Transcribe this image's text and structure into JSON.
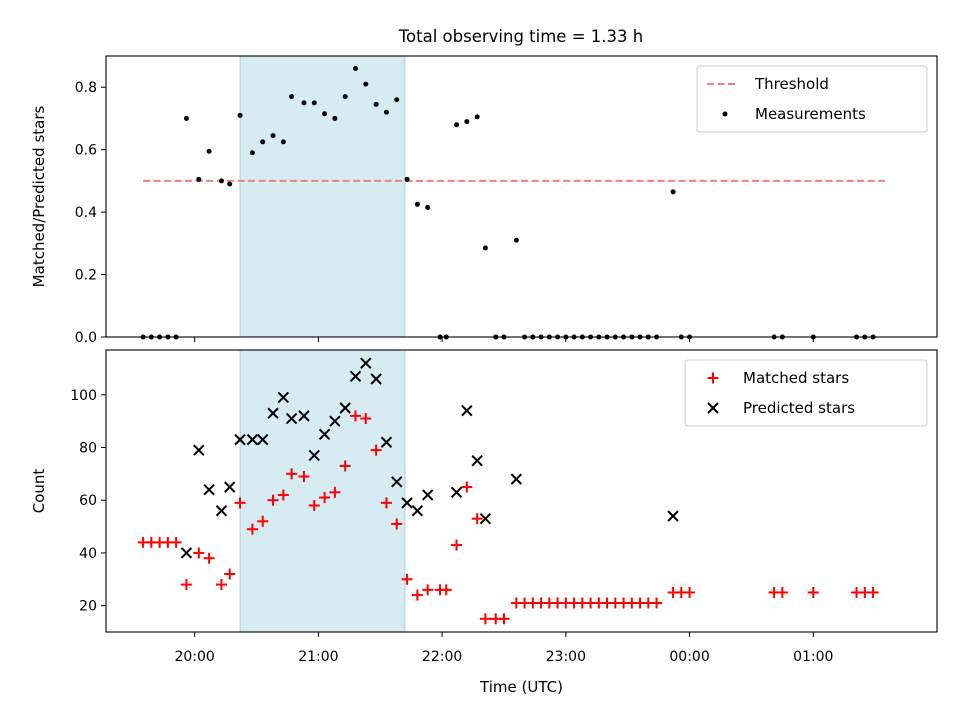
{
  "figure_title": "Total observing time = 1.33 h",
  "chart_data": [
    {
      "type": "scatter",
      "panel": "top",
      "ylabel": "Matched/Predicted stars",
      "xlabel": "",
      "xlim": [
        "19:17",
        "02:00"
      ],
      "ylim": [
        0,
        0.9
      ],
      "yticks": [
        0.0,
        0.2,
        0.4,
        0.6,
        0.8
      ],
      "ytick_labels": [
        "0.0",
        "0.2",
        "0.4",
        "0.6",
        "0.8"
      ],
      "grid": false,
      "legend_position": "upper right",
      "highlight_span": {
        "x": [
          "20:22",
          "21:42"
        ],
        "color": "#add8e6"
      },
      "series": [
        {
          "name": "Threshold",
          "kind": "dashed-line",
          "color": "#f08080",
          "points": [
            {
              "x": "19:35",
              "y": 0.5
            },
            {
              "x": "01:35",
              "y": 0.5
            }
          ]
        },
        {
          "name": "Measurements",
          "kind": "points",
          "color": "#000000",
          "points": [
            {
              "x": "19:35",
              "y": 0
            },
            {
              "x": "19:39",
              "y": 0
            },
            {
              "x": "19:43",
              "y": 0
            },
            {
              "x": "19:47",
              "y": 0
            },
            {
              "x": "19:51",
              "y": 0
            },
            {
              "x": "19:56",
              "y": 0.7
            },
            {
              "x": "20:02",
              "y": 0.505
            },
            {
              "x": "20:07",
              "y": 0.595
            },
            {
              "x": "20:13",
              "y": 0.5
            },
            {
              "x": "20:17",
              "y": 0.49
            },
            {
              "x": "20:22",
              "y": 0.71
            },
            {
              "x": "20:28",
              "y": 0.59
            },
            {
              "x": "20:33",
              "y": 0.625
            },
            {
              "x": "20:38",
              "y": 0.645
            },
            {
              "x": "20:43",
              "y": 0.625
            },
            {
              "x": "20:47",
              "y": 0.77
            },
            {
              "x": "20:53",
              "y": 0.75
            },
            {
              "x": "20:58",
              "y": 0.75
            },
            {
              "x": "21:03",
              "y": 0.715
            },
            {
              "x": "21:08",
              "y": 0.7
            },
            {
              "x": "21:13",
              "y": 0.77
            },
            {
              "x": "21:18",
              "y": 0.86
            },
            {
              "x": "21:23",
              "y": 0.81
            },
            {
              "x": "21:28",
              "y": 0.745
            },
            {
              "x": "21:33",
              "y": 0.72
            },
            {
              "x": "21:38",
              "y": 0.76
            },
            {
              "x": "21:43",
              "y": 0.505
            },
            {
              "x": "21:48",
              "y": 0.425
            },
            {
              "x": "21:53",
              "y": 0.415
            },
            {
              "x": "21:59",
              "y": 0
            },
            {
              "x": "22:02",
              "y": 0
            },
            {
              "x": "22:07",
              "y": 0.68
            },
            {
              "x": "22:12",
              "y": 0.69
            },
            {
              "x": "22:17",
              "y": 0.705
            },
            {
              "x": "22:21",
              "y": 0.285
            },
            {
              "x": "22:26",
              "y": 0
            },
            {
              "x": "22:30",
              "y": 0
            },
            {
              "x": "22:36",
              "y": 0.31
            },
            {
              "x": "22:40",
              "y": 0
            },
            {
              "x": "22:44",
              "y": 0
            },
            {
              "x": "22:48",
              "y": 0
            },
            {
              "x": "22:52",
              "y": 0
            },
            {
              "x": "22:56",
              "y": 0
            },
            {
              "x": "23:00",
              "y": 0
            },
            {
              "x": "23:04",
              "y": 0
            },
            {
              "x": "23:08",
              "y": 0
            },
            {
              "x": "23:12",
              "y": 0
            },
            {
              "x": "23:16",
              "y": 0
            },
            {
              "x": "23:20",
              "y": 0
            },
            {
              "x": "23:24",
              "y": 0
            },
            {
              "x": "23:28",
              "y": 0
            },
            {
              "x": "23:32",
              "y": 0
            },
            {
              "x": "23:36",
              "y": 0
            },
            {
              "x": "23:40",
              "y": 0
            },
            {
              "x": "23:44",
              "y": 0
            },
            {
              "x": "23:52",
              "y": 0.465
            },
            {
              "x": "23:56",
              "y": 0
            },
            {
              "x": "00:00",
              "y": 0
            },
            {
              "x": "00:41",
              "y": 0
            },
            {
              "x": "00:45",
              "y": 0
            },
            {
              "x": "01:00",
              "y": 0
            },
            {
              "x": "01:21",
              "y": 0
            },
            {
              "x": "01:25",
              "y": 0
            },
            {
              "x": "01:29",
              "y": 0
            }
          ]
        }
      ]
    },
    {
      "type": "scatter",
      "panel": "bottom",
      "ylabel": "Count",
      "xlabel": "Time (UTC)",
      "xlim": [
        "19:17",
        "02:00"
      ],
      "ylim": [
        10,
        117
      ],
      "yticks": [
        20,
        40,
        60,
        80,
        100
      ],
      "ytick_labels": [
        "20",
        "40",
        "60",
        "80",
        "100"
      ],
      "xticks": [
        "20:00",
        "21:00",
        "22:00",
        "23:00",
        "00:00",
        "01:00"
      ],
      "xtick_labels": [
        "20:00",
        "21:00",
        "22:00",
        "23:00",
        "00:00",
        "01:00"
      ],
      "grid": false,
      "legend_position": "upper right",
      "highlight_span": {
        "x": [
          "20:22",
          "21:42"
        ],
        "color": "#add8e6"
      },
      "series": [
        {
          "name": "Matched stars",
          "marker": "+",
          "color": "#ff0000",
          "points": [
            {
              "x": "19:35",
              "y": 44
            },
            {
              "x": "19:39",
              "y": 44
            },
            {
              "x": "19:43",
              "y": 44
            },
            {
              "x": "19:47",
              "y": 44
            },
            {
              "x": "19:51",
              "y": 44
            },
            {
              "x": "19:56",
              "y": 28
            },
            {
              "x": "20:02",
              "y": 40
            },
            {
              "x": "20:07",
              "y": 38
            },
            {
              "x": "20:13",
              "y": 28
            },
            {
              "x": "20:17",
              "y": 32
            },
            {
              "x": "20:22",
              "y": 59
            },
            {
              "x": "20:28",
              "y": 49
            },
            {
              "x": "20:33",
              "y": 52
            },
            {
              "x": "20:38",
              "y": 60
            },
            {
              "x": "20:43",
              "y": 62
            },
            {
              "x": "20:47",
              "y": 70
            },
            {
              "x": "20:53",
              "y": 69
            },
            {
              "x": "20:58",
              "y": 58
            },
            {
              "x": "21:03",
              "y": 61
            },
            {
              "x": "21:08",
              "y": 63
            },
            {
              "x": "21:13",
              "y": 73
            },
            {
              "x": "21:18",
              "y": 92
            },
            {
              "x": "21:23",
              "y": 91
            },
            {
              "x": "21:28",
              "y": 79
            },
            {
              "x": "21:33",
              "y": 59
            },
            {
              "x": "21:38",
              "y": 51
            },
            {
              "x": "21:43",
              "y": 30
            },
            {
              "x": "21:48",
              "y": 24
            },
            {
              "x": "21:53",
              "y": 26
            },
            {
              "x": "21:59",
              "y": 26
            },
            {
              "x": "22:02",
              "y": 26
            },
            {
              "x": "22:07",
              "y": 43
            },
            {
              "x": "22:12",
              "y": 65
            },
            {
              "x": "22:17",
              "y": 53
            },
            {
              "x": "22:21",
              "y": 15
            },
            {
              "x": "22:26",
              "y": 15
            },
            {
              "x": "22:30",
              "y": 15
            },
            {
              "x": "22:36",
              "y": 21
            },
            {
              "x": "22:40",
              "y": 21
            },
            {
              "x": "22:44",
              "y": 21
            },
            {
              "x": "22:48",
              "y": 21
            },
            {
              "x": "22:52",
              "y": 21
            },
            {
              "x": "22:56",
              "y": 21
            },
            {
              "x": "23:00",
              "y": 21
            },
            {
              "x": "23:04",
              "y": 21
            },
            {
              "x": "23:08",
              "y": 21
            },
            {
              "x": "23:12",
              "y": 21
            },
            {
              "x": "23:16",
              "y": 21
            },
            {
              "x": "23:20",
              "y": 21
            },
            {
              "x": "23:24",
              "y": 21
            },
            {
              "x": "23:28",
              "y": 21
            },
            {
              "x": "23:32",
              "y": 21
            },
            {
              "x": "23:36",
              "y": 21
            },
            {
              "x": "23:40",
              "y": 21
            },
            {
              "x": "23:44",
              "y": 21
            },
            {
              "x": "23:52",
              "y": 25
            },
            {
              "x": "23:56",
              "y": 25
            },
            {
              "x": "00:00",
              "y": 25
            },
            {
              "x": "00:41",
              "y": 25
            },
            {
              "x": "00:45",
              "y": 25
            },
            {
              "x": "01:00",
              "y": 25
            },
            {
              "x": "01:21",
              "y": 25
            },
            {
              "x": "01:25",
              "y": 25
            },
            {
              "x": "01:29",
              "y": 25
            }
          ]
        },
        {
          "name": "Predicted stars",
          "marker": "x",
          "color": "#000000",
          "points": [
            {
              "x": "19:56",
              "y": 40
            },
            {
              "x": "20:02",
              "y": 79
            },
            {
              "x": "20:07",
              "y": 64
            },
            {
              "x": "20:13",
              "y": 56
            },
            {
              "x": "20:17",
              "y": 65
            },
            {
              "x": "20:22",
              "y": 83
            },
            {
              "x": "20:28",
              "y": 83
            },
            {
              "x": "20:33",
              "y": 83
            },
            {
              "x": "20:38",
              "y": 93
            },
            {
              "x": "20:43",
              "y": 99
            },
            {
              "x": "20:47",
              "y": 91
            },
            {
              "x": "20:53",
              "y": 92
            },
            {
              "x": "20:58",
              "y": 77
            },
            {
              "x": "21:03",
              "y": 85
            },
            {
              "x": "21:08",
              "y": 90
            },
            {
              "x": "21:13",
              "y": 95
            },
            {
              "x": "21:18",
              "y": 107
            },
            {
              "x": "21:23",
              "y": 112
            },
            {
              "x": "21:28",
              "y": 106
            },
            {
              "x": "21:33",
              "y": 82
            },
            {
              "x": "21:38",
              "y": 67
            },
            {
              "x": "21:43",
              "y": 59
            },
            {
              "x": "21:48",
              "y": 56
            },
            {
              "x": "21:53",
              "y": 62
            },
            {
              "x": "22:07",
              "y": 63
            },
            {
              "x": "22:12",
              "y": 94
            },
            {
              "x": "22:17",
              "y": 75
            },
            {
              "x": "22:21",
              "y": 53
            },
            {
              "x": "22:36",
              "y": 68
            },
            {
              "x": "23:52",
              "y": 54
            }
          ]
        }
      ]
    }
  ]
}
